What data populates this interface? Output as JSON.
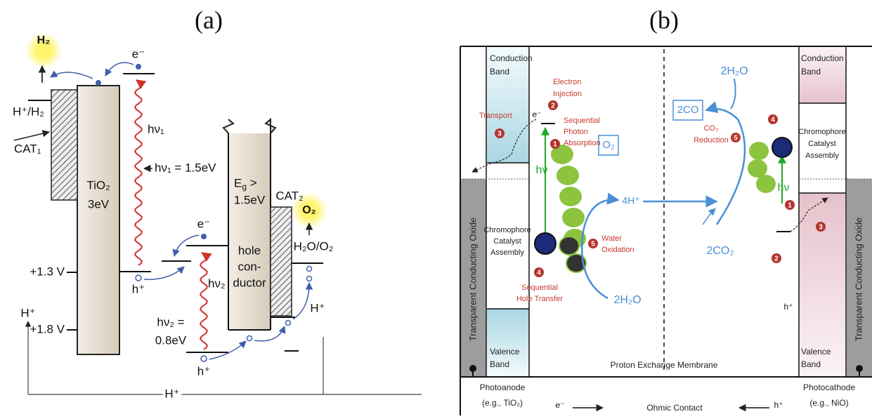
{
  "panel_a": {
    "label": "(a)",
    "h2": "H₂",
    "e_top": "e⁻",
    "h_h2": "H⁺/H₂",
    "cat1": "CAT₁",
    "tio2": "TiO₂",
    "tio2_gap": "3eV",
    "hv1": "hν₁",
    "hv1_value": "hν₁ = 1.5eV",
    "v13": "+1.3 V",
    "h_plus_1": "h⁺",
    "e_mid": "e⁻",
    "hv2": "hν₂",
    "hv2_value": [
      "hν₂ =",
      "0.8eV"
    ],
    "h_plus_2": "h⁺",
    "h_plus_left": "H⁺",
    "v18": "+1.8 V",
    "eg_symbol": "E",
    "eg_sub": "g",
    "eg_rest": " >",
    "gap_value": "1.5eV",
    "hole_conductor": [
      "hole",
      "con-",
      "ductor"
    ],
    "cat2": "CAT₂",
    "o2": "O₂",
    "h2o_o2": "H₂O/O₂",
    "h_plus_right": "H⁺",
    "h_plus_bottom": "H⁺"
  },
  "panel_b": {
    "label": "(b)",
    "cb_left": [
      "Conduction",
      "Band"
    ],
    "electron_injection": [
      "Electron",
      "Injection"
    ],
    "transport": "Transport",
    "e_minus": "e⁻",
    "seq_photon": [
      "Sequential",
      "Photon",
      "Absorption"
    ],
    "hv_left": "hν",
    "chromophore_left": [
      "Chromophore",
      "Catalyst",
      "Assembly"
    ],
    "o2": "O₂",
    "four_h": "4H⁺",
    "water_ox": [
      "Water",
      "Oxidation"
    ],
    "seq_hole": [
      "Sequential",
      "Hole Transfer"
    ],
    "h2o_bottom": "2H₂O",
    "two_co": "2CO",
    "h2o_top": "2H₂O",
    "co2_red": [
      "CO₂",
      "Reduction"
    ],
    "two_co2": "2CO₂",
    "chromophore_right": [
      "Chromophore",
      "Catalyst",
      "Assembly"
    ],
    "cb_right": [
      "Conduction",
      "Band"
    ],
    "hv_right": "hν",
    "h_plus": "h⁺",
    "tco_left": "Transparent Conducting Oxide",
    "tco_right": "Transparent Conducting Oxide",
    "vb_left": [
      "Valence",
      "Band"
    ],
    "vb_right": [
      "Valence",
      "Band"
    ],
    "pem": "Proton Exchange Membrane",
    "photoanode": [
      "Photoanode",
      "(e.g., TiO₂)"
    ],
    "photocathode": [
      "Photocathode",
      "(e.g., NiO)"
    ],
    "ohmic_e": "e⁻",
    "ohmic": "Ohmic Contact",
    "ohmic_h": "h⁺",
    "steps_left": [
      "2",
      "3",
      "1",
      "5",
      "4"
    ],
    "steps_right": [
      "4",
      "5",
      "1",
      "3",
      "2"
    ]
  }
}
